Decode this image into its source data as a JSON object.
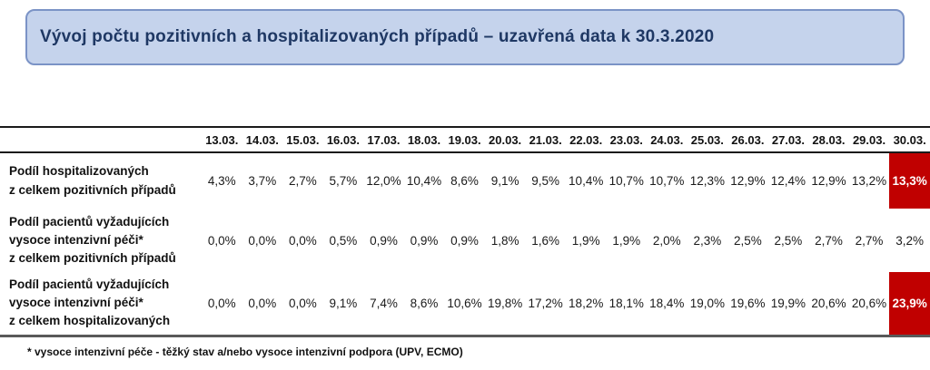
{
  "banner": {
    "title": "Vývoj počtu pozitivních a hospitalizovaných případů – uzavřená data k 30.3.2020"
  },
  "colors": {
    "banner_fill": "#c5d3ec",
    "banner_border": "#7b93c6",
    "banner_text": "#1f3864",
    "highlight_red": "#c00000",
    "highlight_text": "#ffffff",
    "rule_dark": "#1a1a1a",
    "rule_gray": "#595959"
  },
  "chart_data": {
    "type": "table",
    "title": "Vývoj počtu pozitivních a hospitalizovaných případů – uzavřená data k 30.3.2020",
    "columns": [
      "13.03.",
      "14.03.",
      "15.03.",
      "16.03.",
      "17.03.",
      "18.03.",
      "19.03.",
      "20.03.",
      "21.03.",
      "22.03.",
      "23.03.",
      "24.03.",
      "25.03.",
      "26.03.",
      "27.03.",
      "28.03.",
      "29.03.",
      "30.03."
    ],
    "rows": [
      {
        "label": "Podíl hospitalizovaných\nz celkem pozitivních případů",
        "values": [
          "4,3%",
          "3,7%",
          "2,7%",
          "5,7%",
          "12,0%",
          "10,4%",
          "8,6%",
          "9,1%",
          "9,5%",
          "10,4%",
          "10,7%",
          "10,7%",
          "12,3%",
          "12,9%",
          "12,4%",
          "12,9%",
          "13,2%",
          "13,3%"
        ],
        "highlight_last": true
      },
      {
        "label": "Podíl pacientů vyžadujících\nvysoce intenzivní péči*\nz celkem pozitivních případů",
        "values": [
          "0,0%",
          "0,0%",
          "0,0%",
          "0,5%",
          "0,9%",
          "0,9%",
          "0,9%",
          "1,8%",
          "1,6%",
          "1,9%",
          "1,9%",
          "2,0%",
          "2,3%",
          "2,5%",
          "2,5%",
          "2,7%",
          "2,7%",
          "3,2%"
        ],
        "highlight_last": false
      },
      {
        "label": "Podíl pacientů vyžadujících\nvysoce intenzivní péči*\nz celkem hospitalizovaných",
        "values": [
          "0,0%",
          "0,0%",
          "0,0%",
          "9,1%",
          "7,4%",
          "8,6%",
          "10,6%",
          "19,8%",
          "17,2%",
          "18,2%",
          "18,1%",
          "18,4%",
          "19,0%",
          "19,6%",
          "19,9%",
          "20,6%",
          "20,6%",
          "23,9%"
        ],
        "highlight_last": true
      }
    ]
  },
  "footnote": "* vysoce intenzivní péče - těžký stav a/nebo vysoce intenzivní podpora (UPV, ECMO)"
}
